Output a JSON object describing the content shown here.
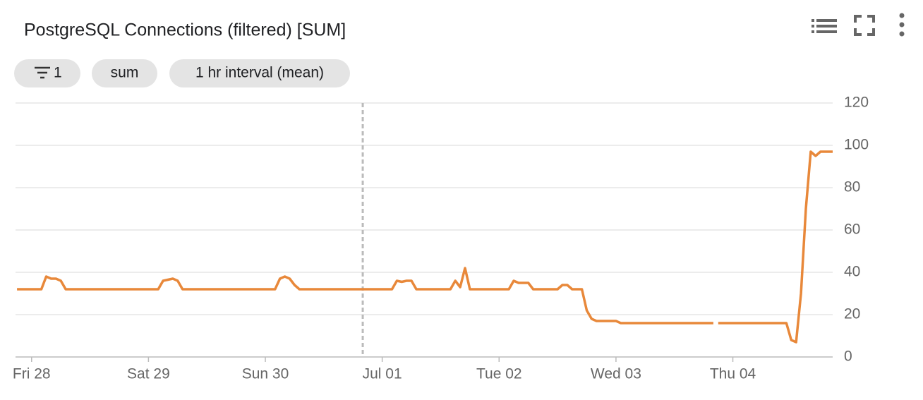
{
  "chips": [
    "1",
    "sum",
    "1 hr interval (mean)"
  ],
  "chart_data": {
    "type": "line",
    "title": "PostgreSQL Connections (filtered) [SUM]",
    "x": [
      -3,
      2,
      3,
      4,
      5,
      6,
      7,
      26,
      27,
      29,
      30,
      31,
      50,
      51,
      52,
      53,
      54,
      55,
      74,
      75,
      76,
      77,
      78,
      79,
      86,
      87,
      88,
      89,
      90,
      98,
      99,
      100,
      101,
      102,
      103,
      108,
      109,
      110,
      111,
      113,
      114,
      115,
      116,
      120,
      121,
      140,
      140.5,
      141,
      155,
      156,
      157,
      158,
      159,
      160,
      161,
      162,
      164.5
    ],
    "values": [
      32,
      32,
      38,
      37,
      37,
      36,
      32,
      32,
      36,
      37,
      36,
      32,
      32,
      37,
      38,
      37,
      34,
      32,
      32,
      36,
      35.5,
      36,
      36,
      32,
      32,
      36,
      33,
      42,
      32,
      32,
      36,
      35,
      35,
      35,
      32,
      32,
      34,
      34,
      32,
      32,
      22,
      18,
      17,
      17,
      16,
      16,
      null,
      16,
      16,
      8,
      7,
      30,
      70,
      97,
      95,
      97,
      97
    ],
    "color": "#e8883a",
    "xlim": [
      -3.3,
      164.5
    ],
    "xticks": [
      {
        "value": 0,
        "label": "Fri 28"
      },
      {
        "value": 24,
        "label": "Sat 29"
      },
      {
        "value": 48,
        "label": "Sun 30"
      },
      {
        "value": 72,
        "label": "Jul 01"
      },
      {
        "value": 96,
        "label": "Tue 02"
      },
      {
        "value": 120,
        "label": "Wed 03"
      },
      {
        "value": 144,
        "label": "Thu 04"
      }
    ],
    "ylim": [
      0,
      120
    ],
    "yticks": [
      0,
      20,
      40,
      60,
      80,
      100,
      120
    ],
    "marker_x": 68,
    "grid": true
  }
}
